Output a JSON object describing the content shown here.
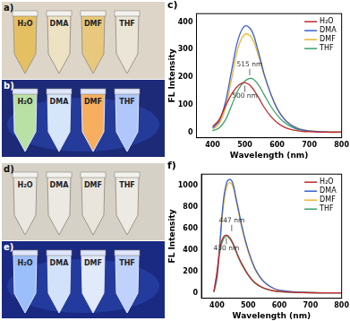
{
  "chart_data": [
    {
      "type": "line",
      "title": "c)",
      "x_label": "Wavelength (nm)",
      "y_label": "FL Intensity",
      "x": [
        400,
        420,
        440,
        460,
        480,
        500,
        520,
        540,
        560,
        580,
        600,
        620,
        640,
        660,
        680,
        700,
        750,
        800
      ],
      "series": [
        {
          "name": "H₂O",
          "color": "#c0282a",
          "values": [
            20,
            45,
            95,
            140,
            170,
            180,
            165,
            130,
            90,
            58,
            35,
            20,
            11,
            6,
            3,
            2,
            0,
            0
          ]
        },
        {
          "name": "DMA",
          "color": "#3a5fd0",
          "values": [
            15,
            40,
            110,
            230,
            340,
            385,
            370,
            300,
            210,
            140,
            85,
            50,
            28,
            15,
            8,
            4,
            1,
            0
          ]
        },
        {
          "name": "DMF",
          "color": "#f0b432",
          "values": [
            10,
            30,
            90,
            200,
            310,
            355,
            345,
            285,
            205,
            140,
            88,
            52,
            30,
            17,
            9,
            5,
            1,
            0
          ]
        },
        {
          "name": "THF",
          "color": "#3aa36a",
          "values": [
            5,
            15,
            45,
            100,
            155,
            185,
            195,
            175,
            135,
            95,
            62,
            38,
            22,
            12,
            7,
            4,
            1,
            0
          ]
        }
      ],
      "xlim": [
        350,
        800
      ],
      "xticks": [
        400,
        500,
        600,
        700,
        800
      ],
      "ylim": [
        -20,
        430
      ],
      "yticks": [
        0,
        100,
        200,
        300,
        400
      ],
      "grid": false,
      "legend": "upper right",
      "annotations": [
        {
          "text": "515 nm",
          "x": 515,
          "y": 200
        },
        {
          "text": "500 nm",
          "x": 500,
          "y": 175
        }
      ]
    },
    {
      "type": "line",
      "title": "f)",
      "x_label": "Wavelength (nm)",
      "y_label": "FL Intensity",
      "x": [
        390,
        400,
        410,
        420,
        430,
        440,
        450,
        460,
        470,
        480,
        500,
        520,
        540,
        560,
        580,
        600,
        650,
        700,
        800
      ],
      "series": [
        {
          "name": "H₂O",
          "color": "#c0282a",
          "values": [
            10,
            200,
            430,
            520,
            540,
            520,
            470,
            400,
            330,
            270,
            170,
            100,
            60,
            35,
            20,
            12,
            4,
            1,
            0
          ]
        },
        {
          "name": "DMA",
          "color": "#3a5fd0",
          "values": [
            10,
            150,
            500,
            850,
            1020,
            1060,
            1030,
            900,
            760,
            620,
            400,
            240,
            140,
            80,
            45,
            25,
            8,
            3,
            0
          ]
        },
        {
          "name": "DMF",
          "color": "#f0b432",
          "values": [
            10,
            140,
            470,
            800,
            980,
            1030,
            1000,
            880,
            740,
            600,
            385,
            230,
            135,
            78,
            43,
            24,
            8,
            3,
            0
          ]
        },
        {
          "name": "THF",
          "color": "#3aa36a",
          "values": [
            10,
            180,
            400,
            500,
            530,
            510,
            460,
            390,
            320,
            260,
            165,
            95,
            57,
            33,
            19,
            11,
            4,
            1,
            0
          ]
        }
      ],
      "xlim": [
        350,
        800
      ],
      "xticks": [
        400,
        500,
        600,
        700,
        800
      ],
      "ylim": [
        -50,
        1110
      ],
      "yticks": [
        0,
        200,
        400,
        600,
        800,
        1000
      ],
      "grid": false,
      "legend": "upper right",
      "annotations": [
        {
          "text": "447 nm",
          "x": 447,
          "y": 560
        },
        {
          "text": "430 nm",
          "x": 430,
          "y": 530
        }
      ]
    }
  ],
  "photo_panels": [
    {
      "label": "a)",
      "tube_labels": [
        "H₂O",
        "DMA",
        "DMF",
        "THF"
      ]
    },
    {
      "label": "b)",
      "tube_labels": [
        "H₂O",
        "DMA",
        "DMF",
        "THF"
      ]
    },
    {
      "label": "d)",
      "tube_labels": [
        "H₂O",
        "DMA",
        "DMF",
        "THF"
      ]
    },
    {
      "label": "e)",
      "tube_labels": [
        "H₂O",
        "DMA",
        "DMF",
        "THF"
      ]
    }
  ]
}
